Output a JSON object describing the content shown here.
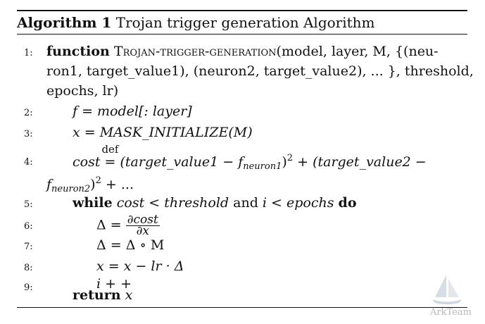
{
  "caption": {
    "label": "Algorithm 1",
    "text": "Trojan trigger generation Algorithm"
  },
  "lines": [
    {
      "num": "1:"
    },
    {
      "num": "2:"
    },
    {
      "num": "3:"
    },
    {
      "num": "4:"
    },
    {
      "num": "5:"
    },
    {
      "num": "6:"
    },
    {
      "num": "7:"
    },
    {
      "num": "8:"
    },
    {
      "num": "9:"
    }
  ],
  "algorithm": {
    "function_kw": "function",
    "function_name": "Trojan-trigger-generation",
    "params_line1": "(model, layer, M, {(neu-",
    "params_line2": "ron1, target_value1), (neuron2, target_value2), ... }, threshold,",
    "params_line3": "epochs, lr)",
    "line2": "f = model[: layer]",
    "line3": "x = MASK_INITIALIZE(M)",
    "cost_var": "cost",
    "def_symbol": "def",
    "line4_part1": "(target_value1 − f",
    "neuron1_sub": "neuron1",
    "line4_part2": "(target_value2 −",
    "line4b_f": "f",
    "neuron2_sub": "neuron2",
    "line4b_tail": "+ ...",
    "while_kw": "while",
    "while_cond_a": "cost < threshold",
    "and_word": "and",
    "while_cond_b": "i < epochs",
    "do_kw": "do",
    "delta": "Δ",
    "frac_num": "∂cost",
    "frac_den": "∂x",
    "line7": "Δ = Δ ∘ M",
    "line8": "x = x − lr · Δ",
    "line9": "i + +",
    "return_kw": "return",
    "return_val": "x"
  },
  "watermark": {
    "text": "ArkTeam"
  }
}
